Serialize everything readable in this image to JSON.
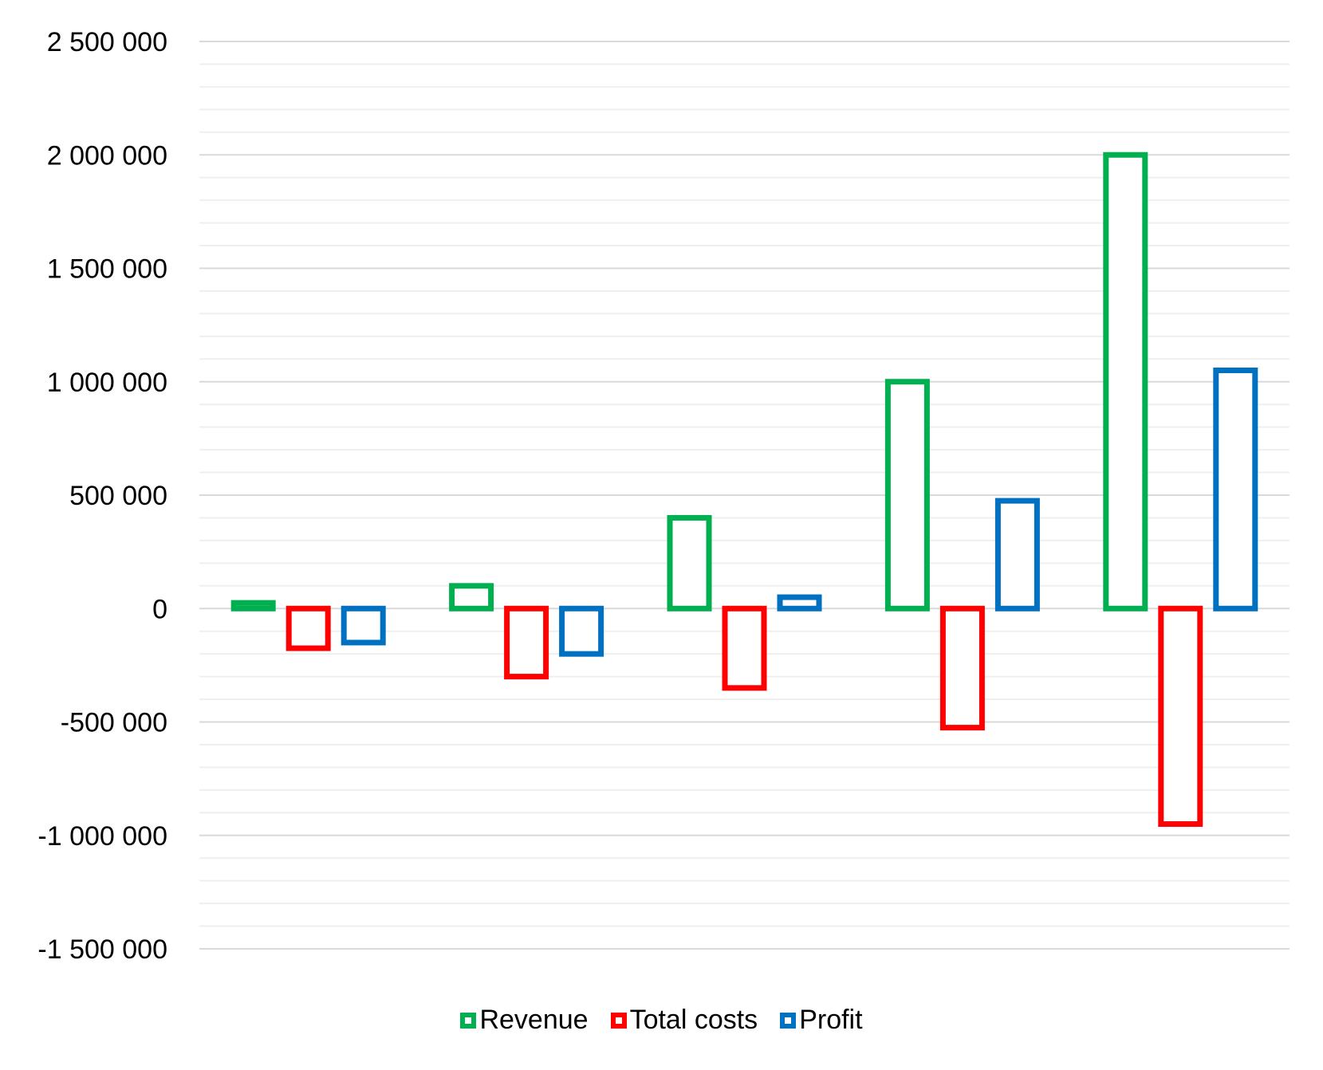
{
  "chart_data": {
    "type": "bar",
    "bar_style": "outline",
    "categories": [
      "",
      "",
      "",
      "",
      ""
    ],
    "series": [
      {
        "name": "Revenue",
        "color": "#00B050",
        "values": [
          25000,
          100000,
          400000,
          1000000,
          2000000
        ]
      },
      {
        "name": "Total costs",
        "color": "#FF0000",
        "values": [
          -175000,
          -300000,
          -350000,
          -525000,
          -950000
        ]
      },
      {
        "name": "Profit",
        "color": "#0070C0",
        "values": [
          -150000,
          -200000,
          50000,
          475000,
          1050000
        ]
      }
    ],
    "ylim": [
      -1500000,
      2500000
    ],
    "yticks": [
      2500000,
      2000000,
      1500000,
      1000000,
      500000,
      0,
      -500000,
      -1000000,
      -1500000
    ],
    "ytick_labels": [
      "2 500 000",
      "2 000 000",
      "1 500 000",
      "1 000 000",
      "500 000",
      "0",
      "-500 000",
      "-1 000 000",
      "-1 500 000"
    ],
    "minor_gridline_step": 100000,
    "grid": true,
    "legend_position": "bottom",
    "title": "",
    "xlabel": "",
    "ylabel": ""
  },
  "legend": {
    "items": [
      {
        "label": "Revenue",
        "color": "#00B050"
      },
      {
        "label": "Total costs",
        "color": "#FF0000"
      },
      {
        "label": "Profit",
        "color": "#0070C0"
      }
    ]
  }
}
